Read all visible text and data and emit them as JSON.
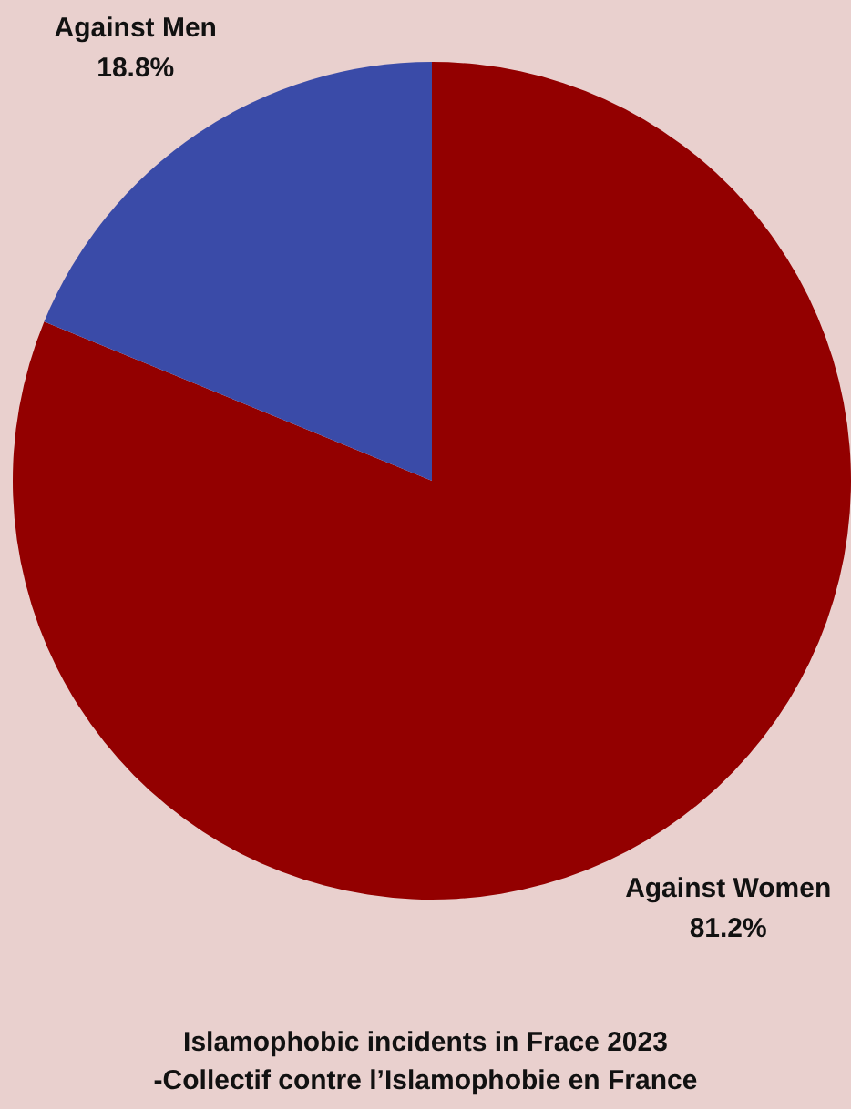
{
  "chart_data": {
    "type": "pie",
    "title": "Islamophobic incidents in Frace 2023",
    "annotations": [
      "-Collectif contre l’Islamophobie en France"
    ],
    "categories": [
      "Against Women",
      "Against Men"
    ],
    "values": [
      81.2,
      18.8
    ],
    "value_labels": [
      "81.2%",
      "18.8%"
    ],
    "colors": [
      "#930000",
      "#3a4ba8"
    ]
  }
}
